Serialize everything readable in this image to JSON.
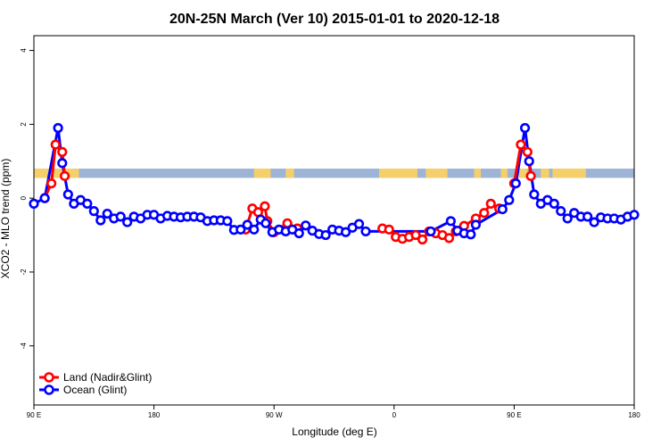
{
  "chart_data": {
    "type": "line",
    "title": "20N-25N March (Ver 10)   2015-01-01 to 2020-12-18",
    "xlabel": "Longitude (deg E)",
    "ylabel": "XCO2 - MLO trend (ppm)",
    "xlim": [
      90,
      450
    ],
    "ylim": [
      -5.6,
      4.4
    ],
    "x_ticks": [
      {
        "value": 90,
        "label": "90 E"
      },
      {
        "value": 162,
        "label": "180"
      },
      {
        "value": 234,
        "label": "90 W"
      },
      {
        "value": 306,
        "label": "0"
      },
      {
        "value": 378,
        "label": "90 E"
      },
      {
        "value": 450,
        "label": "180"
      }
    ],
    "y_ticks": [
      -4,
      -2,
      0,
      2,
      4
    ],
    "grid": false,
    "legend_position": "bottom-left",
    "map_strip": {
      "y_range": [
        0.55,
        0.8
      ],
      "ocean_color": "#9db4d6",
      "land_color": "#f5cf6a",
      "land_segments": [
        [
          90,
          117
        ],
        [
          222,
          232
        ],
        [
          241,
          246
        ],
        [
          297,
          320
        ],
        [
          325,
          338
        ],
        [
          354,
          358
        ],
        [
          370,
          374
        ],
        [
          379,
          386
        ],
        [
          394,
          399
        ],
        [
          401,
          421
        ]
      ]
    },
    "series": [
      {
        "name": "Land (Nadir&Glint)",
        "color": "#ff0000",
        "segments": [
          [
            [
              96.5,
              0.0
            ],
            [
              100.5,
              0.4
            ],
            [
              103.0,
              1.45
            ],
            [
              107.0,
              1.25
            ],
            [
              108.5,
              0.6
            ]
          ],
          [
            [
              217,
              -0.85
            ],
            [
              221,
              -0.28
            ],
            [
              224.5,
              -0.38
            ],
            [
              228.5,
              -0.22
            ],
            [
              230.0,
              -0.62
            ],
            [
              234,
              -0.92
            ],
            [
              240,
              -0.85
            ],
            [
              242,
              -0.68
            ],
            [
              248,
              -0.82
            ]
          ],
          [
            [
              299,
              -0.82
            ],
            [
              303,
              -0.85
            ],
            [
              307,
              -1.05
            ],
            [
              311,
              -1.1
            ],
            [
              315,
              -1.05
            ],
            [
              319,
              -1.0
            ],
            [
              323,
              -1.12
            ],
            [
              327,
              -0.9
            ],
            [
              331,
              -0.95
            ],
            [
              335,
              -1.0
            ],
            [
              339,
              -1.08
            ],
            [
              343,
              -0.9
            ]
          ],
          [
            [
              348,
              -0.75
            ],
            [
              355,
              -0.55
            ],
            [
              360,
              -0.4
            ],
            [
              364,
              -0.15
            ],
            [
              369,
              -0.28
            ]
          ],
          [
            [
              378,
              0.4
            ],
            [
              382,
              1.45
            ],
            [
              386,
              1.25
            ],
            [
              388,
              0.6
            ]
          ]
        ]
      },
      {
        "name": "Ocean (Glint)",
        "color": "#0000ff",
        "points": [
          [
            90.0,
            -0.15
          ],
          [
            96.5,
            0.0
          ],
          [
            104.5,
            1.9
          ],
          [
            107.0,
            0.95
          ],
          [
            110.5,
            0.1
          ],
          [
            114.0,
            -0.15
          ],
          [
            118.0,
            -0.05
          ],
          [
            122.0,
            -0.15
          ],
          [
            126.0,
            -0.35
          ],
          [
            130.0,
            -0.6
          ],
          [
            134.0,
            -0.42
          ],
          [
            138.0,
            -0.55
          ],
          [
            142.0,
            -0.5
          ],
          [
            146.0,
            -0.65
          ],
          [
            150.0,
            -0.5
          ],
          [
            154.0,
            -0.55
          ],
          [
            158.0,
            -0.45
          ],
          [
            162.0,
            -0.45
          ],
          [
            166.0,
            -0.55
          ],
          [
            170.0,
            -0.48
          ],
          [
            174.0,
            -0.5
          ],
          [
            178.0,
            -0.52
          ],
          [
            182.0,
            -0.5
          ],
          [
            186.0,
            -0.5
          ],
          [
            190.0,
            -0.52
          ],
          [
            194.0,
            -0.62
          ],
          [
            198.0,
            -0.6
          ],
          [
            202.0,
            -0.6
          ],
          [
            206.0,
            -0.62
          ],
          [
            210.0,
            -0.86
          ],
          [
            214.0,
            -0.85
          ],
          [
            218.0,
            -0.72
          ],
          [
            222.0,
            -0.85
          ],
          [
            226.0,
            -0.58
          ],
          [
            229.0,
            -0.68
          ],
          [
            233.0,
            -0.92
          ],
          [
            237.0,
            -0.85
          ],
          [
            241.0,
            -0.9
          ],
          [
            245.0,
            -0.85
          ],
          [
            249.0,
            -0.95
          ],
          [
            253.0,
            -0.74
          ],
          [
            257.0,
            -0.88
          ],
          [
            261.0,
            -0.97
          ],
          [
            265.0,
            -1.0
          ],
          [
            269.0,
            -0.85
          ],
          [
            273.0,
            -0.88
          ],
          [
            277.0,
            -0.92
          ],
          [
            281.0,
            -0.8
          ],
          [
            285.0,
            -0.7
          ],
          [
            289.0,
            -0.9
          ],
          [
            328.0,
            -0.9
          ],
          [
            340.0,
            -0.62
          ],
          [
            344.0,
            -0.88
          ],
          [
            348.0,
            -0.95
          ],
          [
            352.0,
            -0.98
          ],
          [
            355.0,
            -0.72
          ],
          [
            371.0,
            -0.3
          ],
          [
            375.0,
            -0.05
          ],
          [
            379.0,
            0.4
          ],
          [
            384.5,
            1.9
          ],
          [
            387.0,
            1.0
          ],
          [
            390.0,
            0.1
          ],
          [
            394.0,
            -0.15
          ],
          [
            398.0,
            -0.05
          ],
          [
            402.0,
            -0.15
          ],
          [
            406.0,
            -0.35
          ],
          [
            410.0,
            -0.55
          ],
          [
            414.0,
            -0.4
          ],
          [
            418.0,
            -0.5
          ],
          [
            422.0,
            -0.5
          ],
          [
            426.0,
            -0.65
          ],
          [
            430.0,
            -0.52
          ],
          [
            434.0,
            -0.55
          ],
          [
            438.0,
            -0.55
          ],
          [
            442.0,
            -0.58
          ],
          [
            446.0,
            -0.5
          ],
          [
            450.0,
            -0.45
          ]
        ]
      }
    ]
  }
}
